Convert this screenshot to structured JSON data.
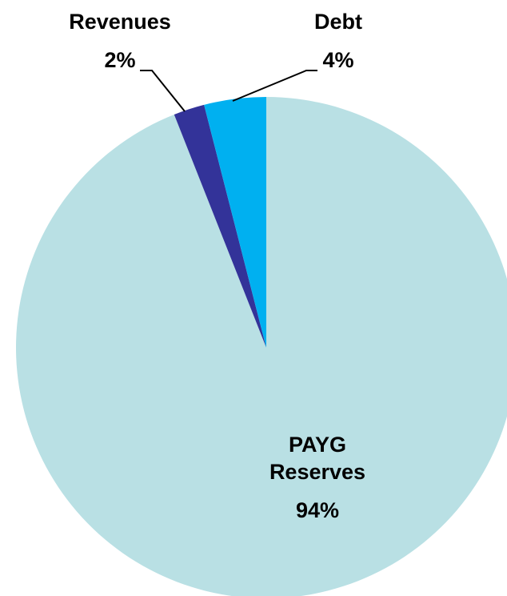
{
  "chart_data": {
    "type": "pie",
    "categories": [
      "PAYG Reserves",
      "Revenues",
      "Debt"
    ],
    "values": [
      94,
      2,
      4
    ],
    "value_labels": [
      "94%",
      "2%",
      "4%"
    ],
    "colors": [
      "#b9e0e4",
      "#333399",
      "#00b0f0"
    ],
    "start_angle": 0,
    "direction": "clockwise"
  }
}
